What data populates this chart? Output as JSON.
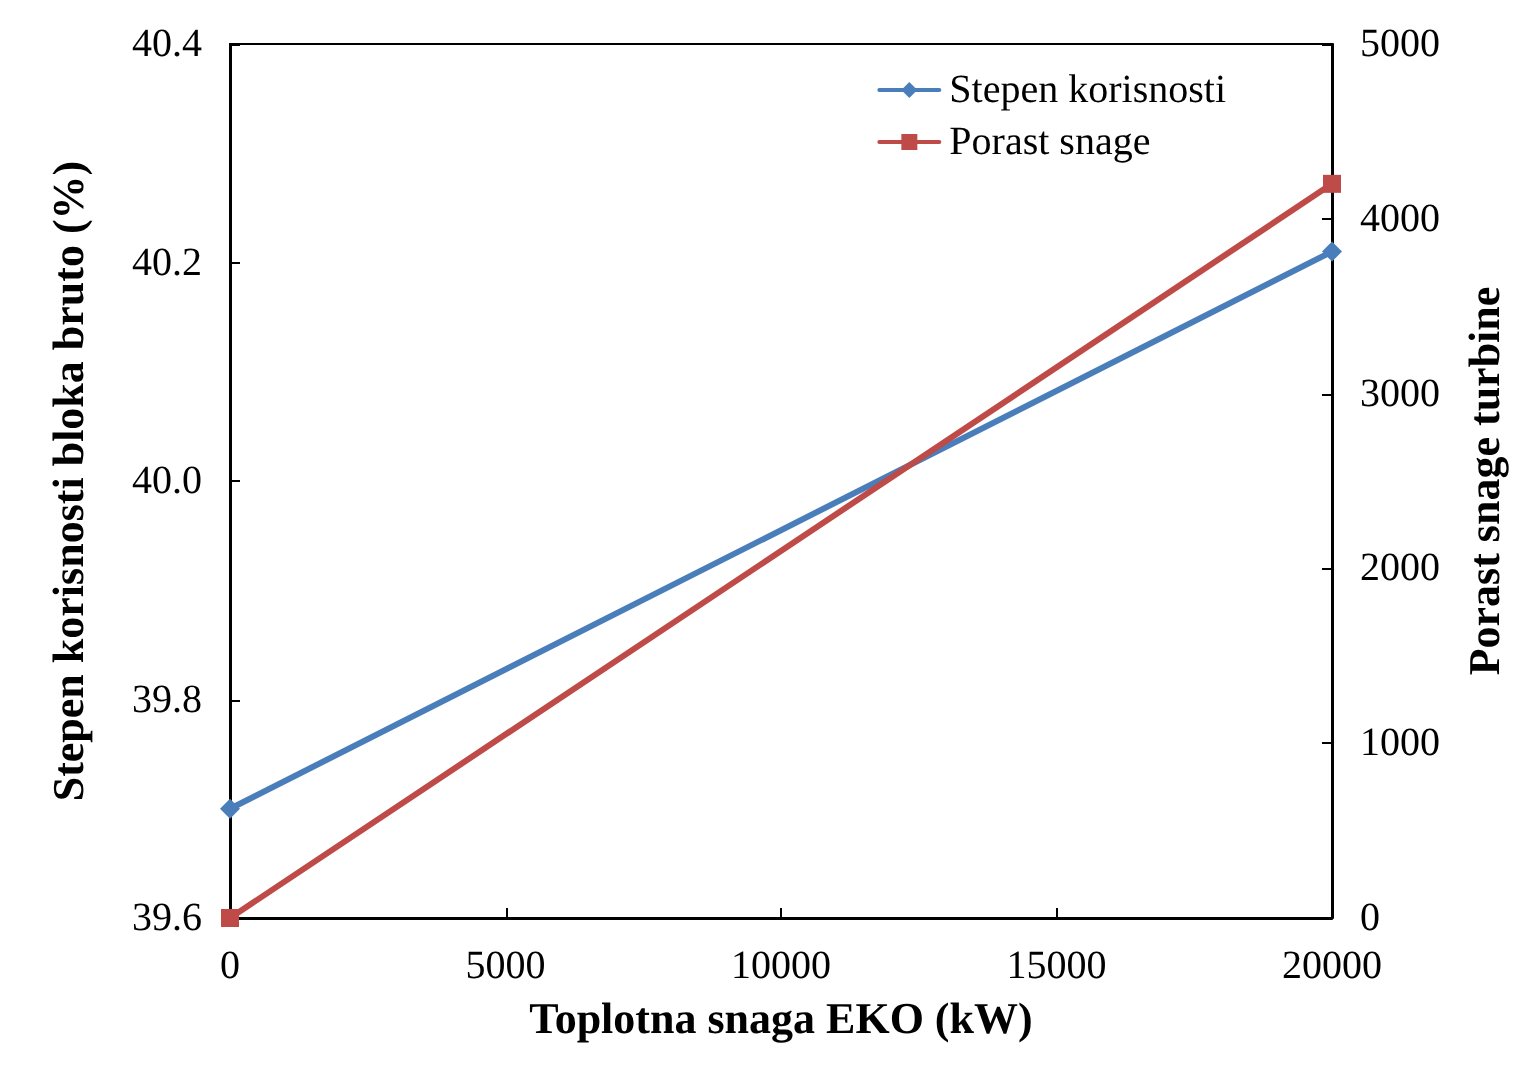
{
  "chart_data": {
    "type": "line",
    "xlabel": "Toplotna snaga EKO (kW)",
    "ylabel": "Stepen korisnosti bloka bruto (%)",
    "y2label": "Porast snage turbine",
    "x": [
      0,
      20000
    ],
    "series": [
      {
        "name": "Stepen korisnosti",
        "color": "#4a7ebb",
        "values": [
          39.7,
          40.21
        ],
        "marker": "diamond"
      },
      {
        "name": "Porast snage",
        "color": "#be4b48",
        "values": [
          0,
          4200
        ],
        "axis": "y2",
        "marker": "square"
      }
    ],
    "xlim": [
      0,
      20000
    ],
    "xticks": [
      0,
      5000,
      10000,
      15000,
      20000
    ],
    "ylim": [
      39.6,
      40.4
    ],
    "yticks": [
      39.6,
      39.8,
      {
        "value": 40,
        "label": "40.0"
      },
      40.2,
      40.4
    ],
    "y2lim": [
      0,
      5000
    ],
    "y2ticks": [
      0,
      1000,
      2000,
      3000,
      4000,
      5000
    ],
    "grid": false,
    "legend": "top right",
    "line_style": "solid"
  }
}
